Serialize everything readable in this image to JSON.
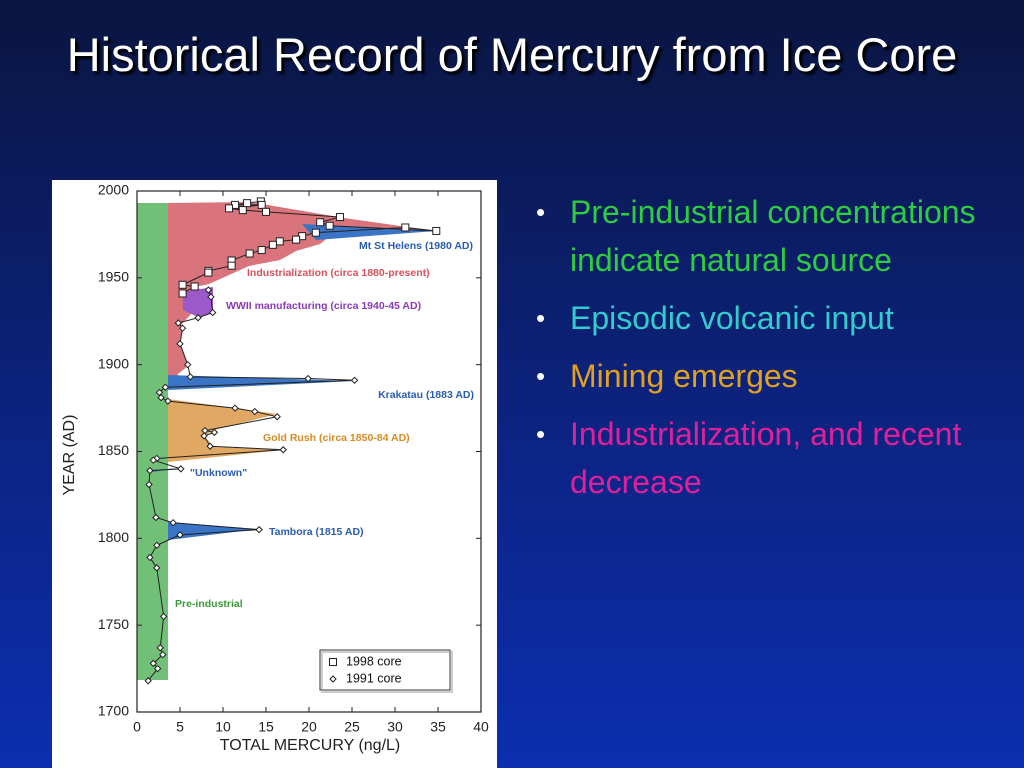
{
  "title": "Historical Record of Mercury from Ice Core",
  "bullets": [
    {
      "text": "Pre-industrial concentrations indicate natural source",
      "color": "#2ecc40"
    },
    {
      "text": "Episodic volcanic input",
      "color": "#33cccc"
    },
    {
      "text": "Mining emerges",
      "color": "#e0a020"
    },
    {
      "text": "Industrialization, and recent decrease",
      "color": "#e0209a"
    }
  ],
  "chart_data": {
    "type": "scatter",
    "xlabel": "TOTAL MERCURY (ng/L)",
    "ylabel": "YEAR (AD)",
    "xlim": [
      0,
      40
    ],
    "ylim": [
      1700,
      2000
    ],
    "xticks": [
      0,
      5,
      10,
      15,
      20,
      25,
      30,
      35,
      40
    ],
    "yticks": [
      1700,
      1750,
      1800,
      1850,
      1900,
      1950,
      2000
    ],
    "series": [
      {
        "name": "1998 core",
        "marker": "square",
        "color": "#222222",
        "x": [
          14.4,
          12.8,
          11.4,
          14.5,
          10.7,
          12.3,
          15.0,
          23.6,
          21.3,
          22.4,
          34.8,
          31.2,
          20.8,
          19.2,
          18.5,
          16.6,
          15.8,
          14.5,
          13.1,
          11.0,
          11.0,
          8.3,
          8.3,
          5.3,
          6.7,
          5.3
        ],
        "values": [
          1994,
          1993,
          1992,
          1992,
          1990,
          1989,
          1988,
          1985,
          1982,
          1980,
          1977,
          1979,
          1976,
          1974,
          1972,
          1971,
          1969,
          1966,
          1964,
          1960,
          1957,
          1954,
          1953,
          1946,
          1945,
          1941
        ]
      },
      {
        "name": "1991 core",
        "marker": "diamond",
        "color": "#222222",
        "x": [
          8.3,
          8.6,
          8.8,
          7.1,
          4.8,
          5.3,
          5.0,
          5.9,
          6.2,
          19.9,
          25.3,
          3.3,
          2.6,
          2.8,
          3.6,
          11.4,
          13.7,
          16.3,
          7.9,
          9.0,
          7.8,
          8.5,
          17.0,
          2.3,
          1.9,
          5.1,
          1.5,
          1.4,
          2.2,
          4.2,
          14.2,
          5.0,
          2.3,
          1.5,
          2.3,
          3.1,
          2.7,
          3.0,
          1.9,
          2.4,
          1.3
        ],
        "values": [
          1943,
          1939,
          1930,
          1927,
          1924,
          1921,
          1912,
          1900,
          1893,
          1892,
          1891,
          1887,
          1884,
          1881,
          1879,
          1875,
          1873,
          1870,
          1862,
          1861,
          1859,
          1853,
          1851,
          1846,
          1845,
          1840,
          1839,
          1831,
          1812,
          1809,
          1805,
          1802,
          1796,
          1789,
          1783,
          1755,
          1737,
          1733,
          1728,
          1725,
          1718
        ]
      }
    ],
    "annotations": [
      {
        "text": "Mt St Helens (1980 AD)",
        "color": "#2a5db0"
      },
      {
        "text": "Industrialization (circa 1880-present)",
        "color": "#d9505a"
      },
      {
        "text": "WWII manufacturing (circa 1940-45 AD)",
        "color": "#8a3ab9"
      },
      {
        "text": "Krakatau (1883 AD)",
        "color": "#2a5db0"
      },
      {
        "text": "Gold Rush (circa 1850-84 AD)",
        "color": "#d98a20"
      },
      {
        "text": "\"Unknown\"",
        "color": "#2a5db0"
      },
      {
        "text": "Tambora (1815 AD)",
        "color": "#2a5db0"
      },
      {
        "text": "Pre-industrial",
        "color": "#3a9a3a"
      }
    ]
  }
}
